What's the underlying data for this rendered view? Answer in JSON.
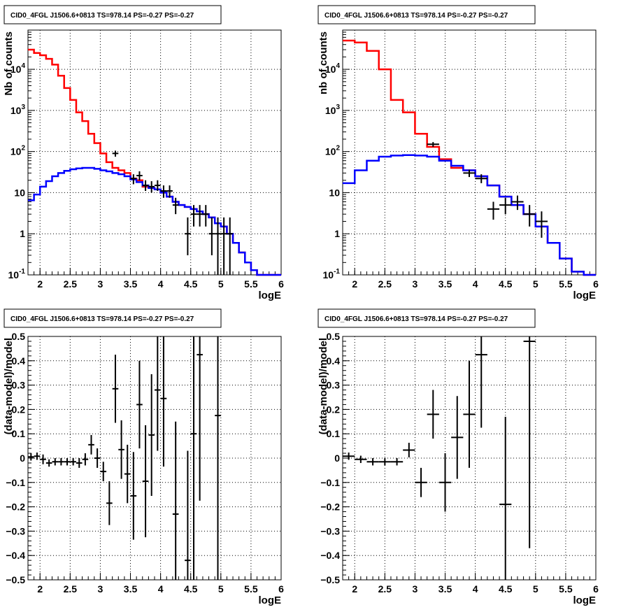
{
  "chart_data": [
    {
      "type": "line",
      "title": "CID0_4FGL J1506.6+0813 TS=978.14 PS=-0.27 PS=-0.27",
      "xlabel": "logE",
      "ylabel": "Nb of counts",
      "xlim": [
        1.8,
        6.0
      ],
      "ylim": [
        0.1,
        90000
      ],
      "yscale": "log",
      "grid": true,
      "x_ticks": [
        "2",
        "2.5",
        "3",
        "3.5",
        "4",
        "4.5",
        "5",
        "5.5",
        "6"
      ],
      "y_ticks": [
        "10^-1",
        "1",
        "10",
        "10^2",
        "10^3",
        "10^4"
      ],
      "series": [
        {
          "color": "#ff0000",
          "style": "step",
          "bin_edges": [
            1.8,
            1.9,
            2.0,
            2.1,
            2.2,
            2.3,
            2.4,
            2.5,
            2.6,
            2.7,
            2.8,
            2.9,
            3.0,
            3.1,
            3.2,
            3.3,
            3.4,
            3.5,
            3.6,
            3.7,
            3.8,
            3.9,
            4.0,
            4.1,
            4.2,
            4.3,
            4.4,
            4.5,
            4.6,
            4.7,
            4.8,
            4.9,
            5.0,
            5.1,
            5.2,
            5.3,
            5.4,
            5.5,
            5.6,
            5.7,
            5.8,
            5.9,
            6.0
          ],
          "values": [
            30000,
            25000,
            22000,
            18000,
            13000,
            7000,
            3500,
            1800,
            900,
            550,
            270,
            160,
            90,
            55,
            40,
            35,
            30,
            22,
            20,
            14,
            13,
            12,
            10,
            8,
            6,
            5,
            4.5,
            4,
            3.5,
            3,
            2.5,
            1.8,
            1.5,
            1.0,
            0.6,
            0.35,
            0.2,
            0.13,
            0.1,
            0.1,
            0.1,
            0.1
          ]
        },
        {
          "color": "#0000ff",
          "style": "step",
          "bin_edges": [
            1.8,
            1.9,
            2.0,
            2.1,
            2.2,
            2.3,
            2.4,
            2.5,
            2.6,
            2.7,
            2.8,
            2.9,
            3.0,
            3.1,
            3.2,
            3.3,
            3.4,
            3.5,
            3.6,
            3.7,
            3.8,
            3.9,
            4.0,
            4.1,
            4.2,
            4.3,
            4.4,
            4.5,
            4.6,
            4.7,
            4.8,
            4.9,
            5.0,
            5.1,
            5.2,
            5.3,
            5.4,
            5.5,
            5.6,
            5.7,
            5.8,
            5.9,
            6.0
          ],
          "values": [
            6.5,
            9,
            14,
            19,
            25,
            30,
            34,
            37,
            39,
            40,
            40,
            38,
            35,
            33,
            30,
            28,
            25,
            21,
            18,
            15,
            13,
            12,
            10,
            8,
            6,
            5,
            4.5,
            4,
            3.5,
            3,
            2.5,
            1.8,
            1.5,
            1.0,
            0.6,
            0.35,
            0.2,
            0.13,
            0.1,
            0.1,
            0.1,
            0.1
          ]
        },
        {
          "color": "#000000",
          "style": "errorbar",
          "points": [
            {
              "x": 3.25,
              "y": 90,
              "xerr": 0.05,
              "ylo": 75,
              "yhi": 105
            },
            {
              "x": 3.55,
              "y": 22,
              "xerr": 0.05,
              "ylo": 16,
              "yhi": 28
            },
            {
              "x": 3.65,
              "y": 26,
              "xerr": 0.05,
              "ylo": 20,
              "yhi": 33
            },
            {
              "x": 3.75,
              "y": 15,
              "xerr": 0.05,
              "ylo": 11,
              "yhi": 20
            },
            {
              "x": 3.85,
              "y": 14,
              "xerr": 0.05,
              "ylo": 10,
              "yhi": 19
            },
            {
              "x": 3.95,
              "y": 15,
              "xerr": 0.05,
              "ylo": 11,
              "yhi": 20
            },
            {
              "x": 4.05,
              "y": 11,
              "xerr": 0.05,
              "ylo": 7.5,
              "yhi": 15
            },
            {
              "x": 4.15,
              "y": 11,
              "xerr": 0.05,
              "ylo": 7.5,
              "yhi": 15
            },
            {
              "x": 4.25,
              "y": 5,
              "xerr": 0.05,
              "ylo": 3,
              "yhi": 7.5
            },
            {
              "x": 4.45,
              "y": 1,
              "xerr": 0.05,
              "ylo": 0.3,
              "yhi": 2.5
            },
            {
              "x": 4.55,
              "y": 3,
              "xerr": 0.05,
              "ylo": 1.5,
              "yhi": 5
            },
            {
              "x": 4.65,
              "y": 3,
              "xerr": 0.05,
              "ylo": 1.5,
              "yhi": 5
            },
            {
              "x": 4.75,
              "y": 3,
              "xerr": 0.05,
              "ylo": 1.5,
              "yhi": 5
            },
            {
              "x": 4.85,
              "y": 1,
              "xerr": 0.05,
              "ylo": 0.3,
              "yhi": 2.5
            },
            {
              "x": 4.95,
              "y": 1,
              "xerr": 0.05,
              "ylo": 0.1,
              "yhi": 2.5
            },
            {
              "x": 5.05,
              "y": 1,
              "xerr": 0.05,
              "ylo": 0.1,
              "yhi": 2.5
            },
            {
              "x": 5.15,
              "y": 1,
              "xerr": 0.05,
              "ylo": 0.1,
              "yhi": 2.5
            }
          ]
        }
      ]
    },
    {
      "type": "line",
      "title": "CID0_4FGL J1506.6+0813 TS=978.14 PS=-0.27 PS=-0.27",
      "xlabel": "logE",
      "ylabel": "nb of counts",
      "xlim": [
        1.8,
        6.0
      ],
      "ylim": [
        0.1,
        90000
      ],
      "yscale": "log",
      "grid": true,
      "x_ticks": [
        "2",
        "2.5",
        "3",
        "3.5",
        "4",
        "4.5",
        "5",
        "5.5",
        "6"
      ],
      "y_ticks": [
        "10^-1",
        "1",
        "10",
        "10^2",
        "10^3",
        "10^4"
      ],
      "series": [
        {
          "color": "#ff0000",
          "style": "step",
          "bin_edges": [
            1.8,
            2.0,
            2.2,
            2.4,
            2.6,
            2.8,
            3.0,
            3.2,
            3.4,
            3.6,
            3.8,
            4.0,
            4.2,
            4.4,
            4.6,
            4.8,
            5.0,
            5.2,
            5.4,
            5.6,
            5.8,
            6.0
          ],
          "values": [
            50000,
            45000,
            28000,
            10000,
            1800,
            900,
            270,
            130,
            65,
            40,
            35,
            25,
            15,
            8,
            5,
            3,
            1.5,
            0.6,
            0.25,
            0.12,
            0.1
          ]
        },
        {
          "color": "#0000ff",
          "style": "step",
          "bin_edges": [
            1.8,
            2.0,
            2.2,
            2.4,
            2.6,
            2.8,
            3.0,
            3.2,
            3.4,
            3.6,
            3.8,
            4.0,
            4.2,
            4.4,
            4.6,
            4.8,
            5.0,
            5.2,
            5.4,
            5.6,
            5.8,
            6.0
          ],
          "values": [
            17,
            35,
            60,
            75,
            80,
            82,
            80,
            75,
            60,
            45,
            35,
            25,
            15,
            8,
            5,
            3,
            1.5,
            0.6,
            0.25,
            0.12,
            0.1
          ]
        },
        {
          "color": "#000000",
          "style": "errorbar",
          "points": [
            {
              "x": 3.3,
              "y": 150,
              "xerr": 0.1,
              "ylo": 130,
              "yhi": 170
            },
            {
              "x": 3.9,
              "y": 30,
              "xerr": 0.1,
              "ylo": 24,
              "yhi": 36
            },
            {
              "x": 4.1,
              "y": 22,
              "xerr": 0.1,
              "ylo": 17,
              "yhi": 28
            },
            {
              "x": 4.3,
              "y": 4,
              "xerr": 0.1,
              "ylo": 2.2,
              "yhi": 6
            },
            {
              "x": 4.5,
              "y": 5,
              "xerr": 0.1,
              "ylo": 3,
              "yhi": 7.5
            },
            {
              "x": 4.7,
              "y": 6,
              "xerr": 0.1,
              "ylo": 3.8,
              "yhi": 8.5
            },
            {
              "x": 4.9,
              "y": 3,
              "xerr": 0.1,
              "ylo": 1.5,
              "yhi": 5
            },
            {
              "x": 5.1,
              "y": 2,
              "xerr": 0.1,
              "ylo": 0.8,
              "yhi": 3.5
            }
          ]
        }
      ]
    },
    {
      "type": "scatter",
      "title": "CID0_4FGL J1506.6+0813 TS=978.14 PS=-0.27 PS=-0.27",
      "xlabel": "logE",
      "ylabel": "(data-model)/model",
      "xlim": [
        1.8,
        6.0
      ],
      "ylim": [
        -0.5,
        0.5
      ],
      "grid": true,
      "x_ticks": [
        "2",
        "2.5",
        "3",
        "3.5",
        "4",
        "4.5",
        "5",
        "5.5",
        "6"
      ],
      "y_ticks": [
        "−0.5",
        "−0.4",
        "−0.3",
        "−0.2",
        "−0.1",
        "0",
        "0.1",
        "0.2",
        "0.3",
        "0.4",
        "0.5"
      ],
      "series": [
        {
          "color": "#000000",
          "style": "errorbar",
          "points": [
            {
              "x": 1.85,
              "y": 0.005,
              "xerr": 0.05,
              "yerr": 0.015
            },
            {
              "x": 1.95,
              "y": 0.008,
              "xerr": 0.05,
              "yerr": 0.015
            },
            {
              "x": 2.05,
              "y": -0.005,
              "xerr": 0.05,
              "yerr": 0.02
            },
            {
              "x": 2.15,
              "y": -0.02,
              "xerr": 0.05,
              "yerr": 0.015
            },
            {
              "x": 2.25,
              "y": -0.015,
              "xerr": 0.05,
              "yerr": 0.015
            },
            {
              "x": 2.35,
              "y": -0.015,
              "xerr": 0.05,
              "yerr": 0.015
            },
            {
              "x": 2.45,
              "y": -0.015,
              "xerr": 0.05,
              "yerr": 0.015
            },
            {
              "x": 2.55,
              "y": -0.015,
              "xerr": 0.05,
              "yerr": 0.015
            },
            {
              "x": 2.65,
              "y": -0.02,
              "xerr": 0.05,
              "yerr": 0.02
            },
            {
              "x": 2.75,
              "y": -0.005,
              "xerr": 0.05,
              "yerr": 0.025
            },
            {
              "x": 2.85,
              "y": 0.055,
              "xerr": 0.05,
              "yerr": 0.04
            },
            {
              "x": 2.95,
              "y": 0.0,
              "xerr": 0.05,
              "yerr": 0.04
            },
            {
              "x": 3.05,
              "y": -0.055,
              "xerr": 0.05,
              "yerr": 0.04
            },
            {
              "x": 3.15,
              "y": -0.185,
              "xerr": 0.05,
              "yerr": 0.09
            },
            {
              "x": 3.25,
              "y": 0.285,
              "xerr": 0.05,
              "yerr": 0.14
            },
            {
              "x": 3.35,
              "y": 0.035,
              "xerr": 0.05,
              "yerr": 0.12
            },
            {
              "x": 3.45,
              "y": -0.065,
              "xerr": 0.05,
              "yerr": 0.12
            },
            {
              "x": 3.55,
              "y": -0.155,
              "xerr": 0.05,
              "yerr": 0.18
            },
            {
              "x": 3.65,
              "y": 0.22,
              "xerr": 0.05,
              "yerr": 0.18
            },
            {
              "x": 3.75,
              "y": -0.095,
              "xerr": 0.05,
              "yerr": 0.23
            },
            {
              "x": 3.85,
              "y": 0.095,
              "xerr": 0.05,
              "yerr": 0.25
            },
            {
              "x": 3.95,
              "y": 0.28,
              "xerr": 0.05,
              "yerr": 0.25
            },
            {
              "x": 4.05,
              "y": 0.245,
              "xerr": 0.05,
              "yerr": 0.28
            },
            {
              "x": 4.25,
              "y": -0.23,
              "xerr": 0.05,
              "yerr": 0.38
            },
            {
              "x": 4.45,
              "y": -0.42,
              "xerr": 0.05,
              "yerr": 0.45
            },
            {
              "x": 4.55,
              "y": 0.1,
              "xerr": 0.05,
              "yerr": 0.6
            },
            {
              "x": 4.65,
              "y": 0.425,
              "xerr": 0.05,
              "yerr": 0.6
            },
            {
              "x": 4.95,
              "y": 0.175,
              "xerr": 0.05,
              "yerr": 0.7
            }
          ]
        }
      ]
    },
    {
      "type": "scatter",
      "title": "CID0_4FGL J1506.6+0813 TS=978.14 PS=-0.27 PS=-0.27",
      "xlabel": "logE",
      "ylabel": "(data-model)/model",
      "xlim": [
        1.8,
        6.0
      ],
      "ylim": [
        -0.5,
        0.5
      ],
      "grid": true,
      "x_ticks": [
        "2",
        "2.5",
        "3",
        "3.5",
        "4",
        "4.5",
        "5",
        "5.5",
        "6"
      ],
      "y_ticks": [
        "−0.5",
        "−0.4",
        "−0.3",
        "−0.2",
        "−0.1",
        "0",
        "0.1",
        "0.2",
        "0.3",
        "0.4",
        "0.5"
      ],
      "series": [
        {
          "color": "#000000",
          "style": "errorbar",
          "points": [
            {
              "x": 1.9,
              "y": 0.008,
              "xerr": 0.1,
              "yerr": 0.015
            },
            {
              "x": 2.1,
              "y": -0.005,
              "xerr": 0.1,
              "yerr": 0.015
            },
            {
              "x": 2.3,
              "y": -0.015,
              "xerr": 0.1,
              "yerr": 0.015
            },
            {
              "x": 2.5,
              "y": -0.015,
              "xerr": 0.1,
              "yerr": 0.015
            },
            {
              "x": 2.7,
              "y": -0.015,
              "xerr": 0.1,
              "yerr": 0.015
            },
            {
              "x": 2.9,
              "y": 0.033,
              "xerr": 0.1,
              "yerr": 0.03
            },
            {
              "x": 3.1,
              "y": -0.1,
              "xerr": 0.1,
              "yerr": 0.06
            },
            {
              "x": 3.3,
              "y": 0.18,
              "xerr": 0.1,
              "yerr": 0.1
            },
            {
              "x": 3.5,
              "y": -0.1,
              "xerr": 0.1,
              "yerr": 0.12
            },
            {
              "x": 3.7,
              "y": 0.085,
              "xerr": 0.1,
              "yerr": 0.17
            },
            {
              "x": 3.9,
              "y": 0.18,
              "xerr": 0.1,
              "yerr": 0.22
            },
            {
              "x": 4.1,
              "y": 0.425,
              "xerr": 0.1,
              "yerr": 0.3
            },
            {
              "x": 4.5,
              "y": -0.19,
              "xerr": 0.1,
              "yerr": 0.36
            },
            {
              "x": 4.9,
              "y": 0.48,
              "xerr": 0.1,
              "yerr": 0.85
            }
          ]
        }
      ]
    }
  ]
}
